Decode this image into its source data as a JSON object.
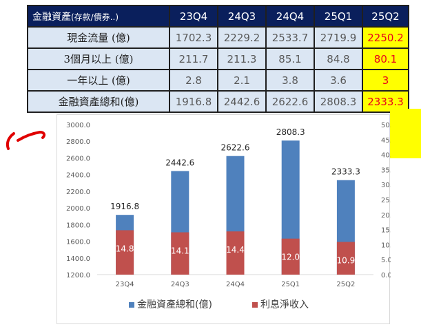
{
  "table": {
    "corner_label": "金融資產",
    "corner_sub": "(存款/債券..)",
    "columns": [
      "23Q4",
      "24Q3",
      "24Q4",
      "25Q1",
      "25Q2"
    ],
    "rows": [
      {
        "label": "現金流量 (億)",
        "values": [
          "1702.3",
          "2229.2",
          "2533.7",
          "2719.9",
          "2250.2"
        ]
      },
      {
        "label": "3個月以上 (億)",
        "values": [
          "211.7",
          "211.3",
          "85.1",
          "84.8",
          "80.1"
        ]
      },
      {
        "label": "一年以上 (億)",
        "values": [
          "2.8",
          "2.1",
          "3.8",
          "3.6",
          "3"
        ]
      },
      {
        "label": "金融資產總和(億)",
        "values": [
          "1916.8",
          "2442.6",
          "2622.6",
          "2808.3",
          "2333.3"
        ]
      }
    ],
    "highlight_color": "#ffff00",
    "highlight_text_color": "#e8001c",
    "header_color": "#0a1f5c",
    "cell_color": "#dbe6f3"
  },
  "chart_data": {
    "type": "bar",
    "categories": [
      "23Q4",
      "24Q3",
      "24Q4",
      "25Q1",
      "25Q2"
    ],
    "series": [
      {
        "name": "金融資產總和(億)",
        "axis": "left",
        "color": "#4f81bd",
        "values": [
          1916.8,
          2442.6,
          2622.6,
          2808.3,
          2333.3
        ],
        "labels": [
          "1916.8",
          "2442.6",
          "2622.6",
          "2808.3",
          "2333.3"
        ]
      },
      {
        "name": "利息淨收入",
        "axis": "right",
        "color": "#c0504d",
        "values": [
          14.8,
          14.1,
          14.4,
          12.0,
          10.9
        ],
        "labels": [
          "14.8",
          "14.1",
          "14.4",
          "12.0",
          "10.9"
        ]
      }
    ],
    "left_axis": {
      "min": 1200,
      "max": 3000,
      "step": 200,
      "ticks": [
        "1200.0",
        "1400.0",
        "1600.0",
        "1800.0",
        "2000.0",
        "2200.0",
        "2400.0",
        "2600.0",
        "2800.0",
        "3000.0"
      ]
    },
    "right_axis": {
      "min": 0,
      "max": 50,
      "step": 5,
      "ticks": [
        "0.0",
        "5.0",
        "10.0",
        "15.0",
        "20.0",
        "25.0",
        "30.0",
        "35.0",
        "40.0",
        "45.0",
        "50.0"
      ]
    },
    "legend_position": "bottom",
    "grid": false
  }
}
